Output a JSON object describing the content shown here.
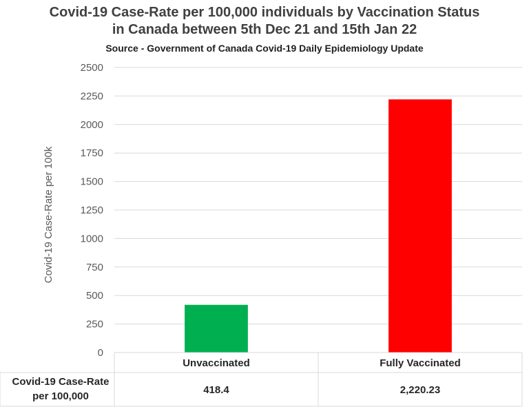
{
  "chart_data": {
    "type": "bar",
    "title_line1": "Covid-19 Case-Rate per 100,000 individuals by Vaccination Status",
    "title_line2": "in Canada between 5th Dec 21 and 15th Jan 22",
    "subtitle": "Source - Government of Canada Covid-19 Daily Epidemiology Update",
    "ylabel": "Covid-19 Case-Rate per 100k",
    "ylim": [
      0,
      2500
    ],
    "yticks": [
      0,
      250,
      500,
      750,
      1000,
      1250,
      1500,
      1750,
      2000,
      2250,
      2500
    ],
    "grid": true,
    "categories": [
      "Unvaccinated",
      "Fully Vaccinated"
    ],
    "values": [
      418.4,
      2220.23
    ],
    "colors": [
      "#00b050",
      "#ff0000"
    ],
    "data_table": {
      "row_label_line1": "Covid-19 Case-Rate",
      "row_label_line2": "per 100,000",
      "cells": [
        "418.4",
        "2,220.23"
      ]
    }
  }
}
